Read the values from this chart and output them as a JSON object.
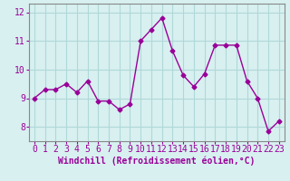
{
  "x": [
    0,
    1,
    2,
    3,
    4,
    5,
    6,
    7,
    8,
    9,
    10,
    11,
    12,
    13,
    14,
    15,
    16,
    17,
    18,
    19,
    20,
    21,
    22,
    23
  ],
  "y": [
    9.0,
    9.3,
    9.3,
    9.5,
    9.2,
    9.6,
    8.9,
    8.9,
    8.6,
    8.8,
    11.0,
    11.4,
    11.8,
    10.65,
    9.8,
    9.4,
    9.85,
    10.85,
    10.85,
    10.85,
    9.6,
    9.0,
    7.85,
    8.2
  ],
  "line_color": "#990099",
  "marker": "D",
  "marker_size": 2.5,
  "bg_color": "#d8f0f0",
  "grid_color": "#b0d8d8",
  "xlabel": "Windchill (Refroidissement éolien,°C)",
  "ylim": [
    7.5,
    12.3
  ],
  "xlim": [
    -0.5,
    23.5
  ],
  "yticks": [
    8,
    9,
    10,
    11,
    12
  ],
  "xticks": [
    0,
    1,
    2,
    3,
    4,
    5,
    6,
    7,
    8,
    9,
    10,
    11,
    12,
    13,
    14,
    15,
    16,
    17,
    18,
    19,
    20,
    21,
    22,
    23
  ],
  "tick_color": "#990099",
  "label_color": "#990099",
  "font_size_xlabel": 7,
  "font_size_ticks": 7,
  "spine_color": "#888888"
}
